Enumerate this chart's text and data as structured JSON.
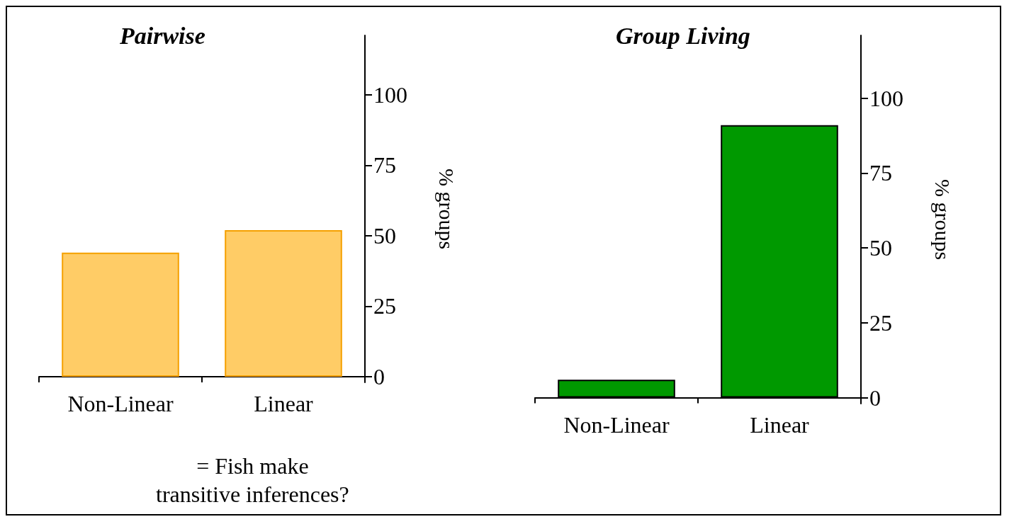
{
  "chart_data": [
    {
      "type": "bar",
      "title": "Pairwise",
      "ylabel": "% groups",
      "categories": [
        "Non-Linear",
        "Linear"
      ],
      "series": [
        {
          "color": "#ffcc66",
          "values": [
            44,
            52
          ]
        }
      ],
      "ylim": [
        -2,
        121
      ],
      "yticks": [
        0,
        25,
        50,
        75,
        100
      ],
      "grid": false,
      "annotations": [
        "= Fish make\ntransitive inferences?"
      ]
    },
    {
      "type": "bar",
      "title": "Group Living",
      "ylabel": "% groups",
      "categories": [
        "Non-Linear",
        "Linear"
      ],
      "series": [
        {
          "color": "#009900",
          "values": [
            6,
            91
          ]
        }
      ],
      "ylim": [
        -2,
        121
      ],
      "yticks": [
        0,
        25,
        50,
        75,
        100
      ],
      "grid": false
    }
  ]
}
